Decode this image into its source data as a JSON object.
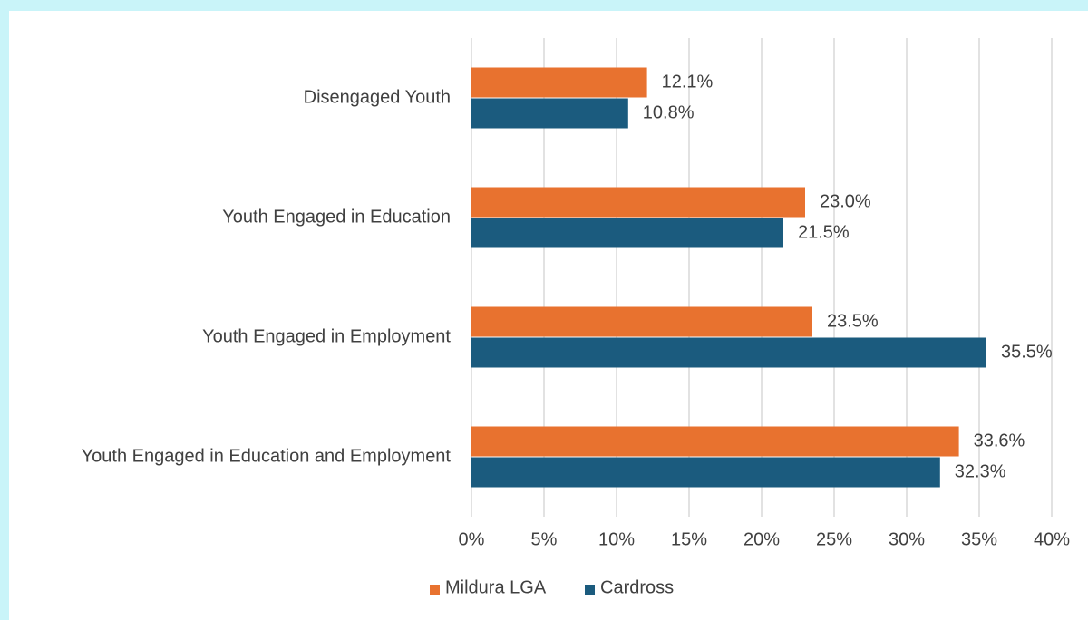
{
  "chart_data": {
    "type": "bar",
    "orientation": "horizontal",
    "categories": [
      "Disengaged Youth",
      "Youth Engaged in Education",
      "Youth Engaged in Employment",
      "Youth Engaged in Education and Employment"
    ],
    "series": [
      {
        "name": "Mildura LGA",
        "color": "#e8722f",
        "values": [
          12.1,
          23.0,
          23.5,
          33.6
        ],
        "value_labels": [
          "12.1%",
          "23.0%",
          "23.5%",
          "33.6%"
        ]
      },
      {
        "name": "Cardross",
        "color": "#1b5b7e",
        "values": [
          10.8,
          21.5,
          35.5,
          32.3
        ],
        "value_labels": [
          "10.8%",
          "21.5%",
          "35.5%",
          "32.3%"
        ]
      }
    ],
    "xlim": [
      0,
      40
    ],
    "xticks": [
      {
        "value": 0,
        "label": "0%"
      },
      {
        "value": 5,
        "label": "5%"
      },
      {
        "value": 10,
        "label": "10%"
      },
      {
        "value": 15,
        "label": "15%"
      },
      {
        "value": 20,
        "label": "20%"
      },
      {
        "value": 25,
        "label": "25%"
      },
      {
        "value": 30,
        "label": "30%"
      },
      {
        "value": 35,
        "label": "35%"
      },
      {
        "value": 40,
        "label": "40%"
      }
    ],
    "grid": true,
    "legend": "bottom"
  }
}
